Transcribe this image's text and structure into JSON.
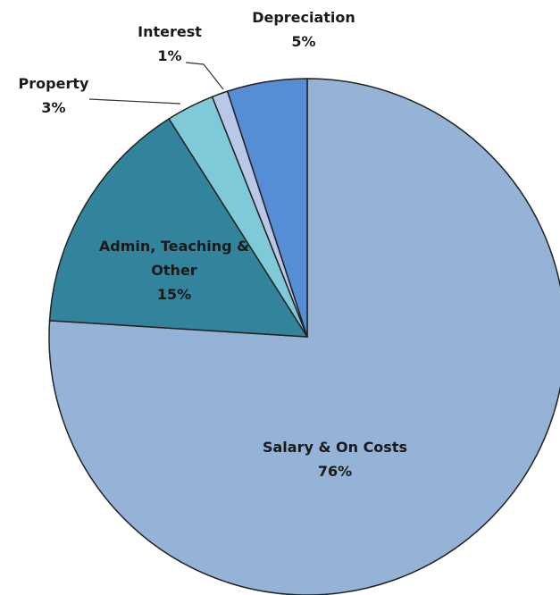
{
  "chart_data": {
    "type": "pie",
    "categories": [
      "Salary & On Costs",
      "Admin, Teaching & Other",
      "Property",
      "Interest",
      "Depreciation"
    ],
    "values": [
      76,
      15,
      3,
      1,
      5
    ],
    "value_labels": [
      "76%",
      "15%",
      "3%",
      "1%",
      "5%"
    ],
    "colors": [
      "#95b3d7",
      "#31849b",
      "#7fcad8",
      "#b9c8e6",
      "#558ed5"
    ]
  }
}
